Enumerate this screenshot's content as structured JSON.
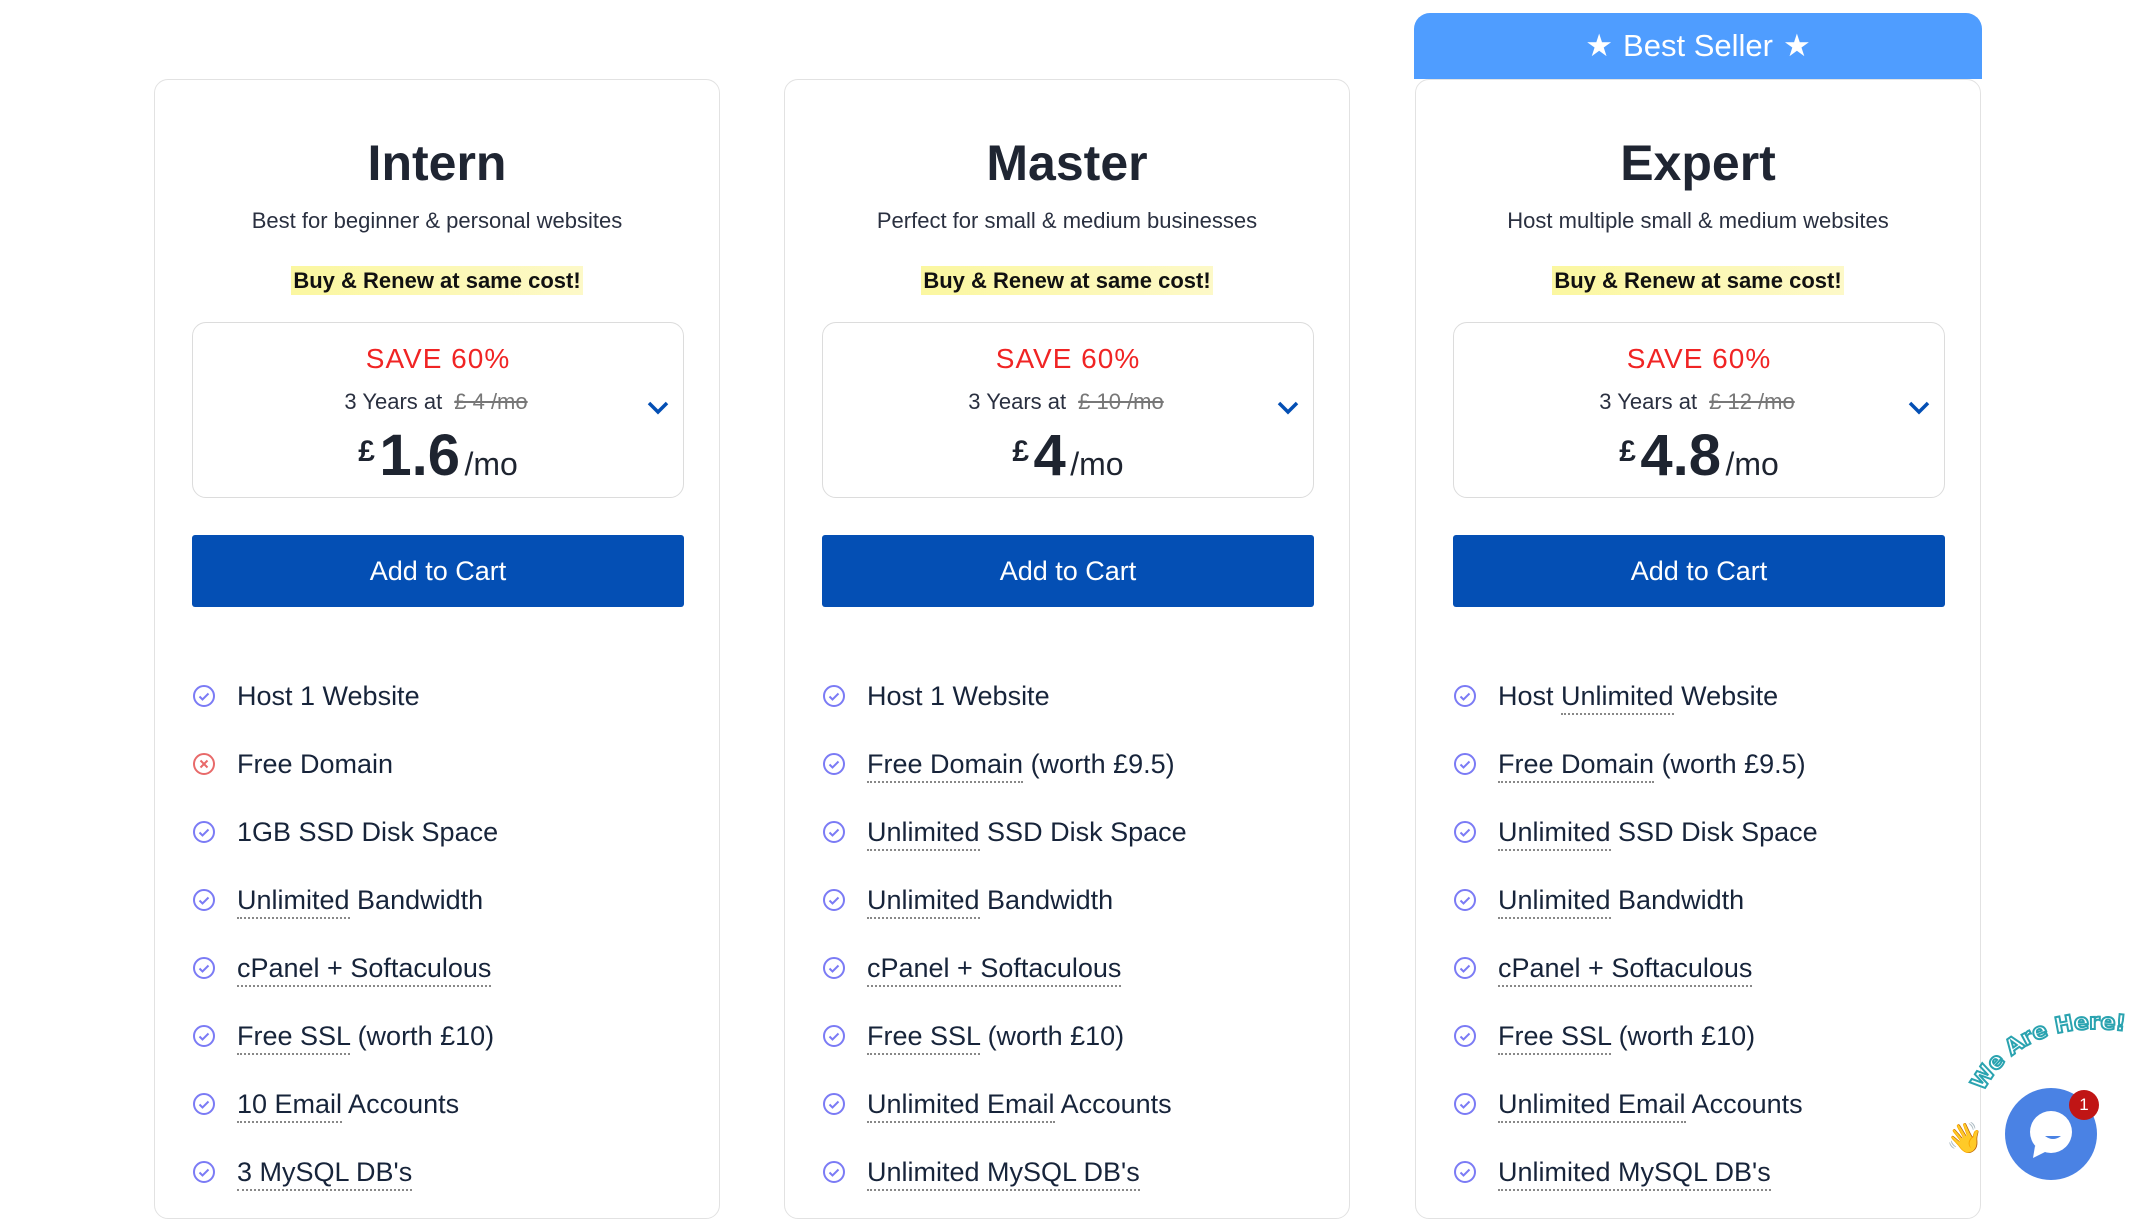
{
  "banner": {
    "label": "Best Seller",
    "star": "★"
  },
  "colors": {
    "accent_button": "#044fb4",
    "banner": "#4f9dff",
    "save": "#f02424",
    "check": "#7b7bf5",
    "cross": "#e86a6a"
  },
  "plans": [
    {
      "name": "Intern",
      "subtitle": "Best for beginner & personal websites",
      "highlight": "Buy & Renew at same cost!",
      "save": "SAVE 60%",
      "term": "3 Years at",
      "old_price": "£ 4 /mo",
      "currency": "£",
      "price": "1.6",
      "per": "/mo",
      "button": "Add to Cart",
      "features": [
        {
          "icon": "check",
          "pre": "Host 1 Website",
          "u": "",
          "post": ""
        },
        {
          "icon": "cross",
          "pre": "Free Domain",
          "u": "",
          "post": ""
        },
        {
          "icon": "check",
          "pre": "1GB SSD Disk Space",
          "u": "",
          "post": ""
        },
        {
          "icon": "check",
          "pre": "",
          "u": "Unlimited",
          "post": " Bandwidth"
        },
        {
          "icon": "check",
          "pre": "",
          "u": "cPanel + Softaculous",
          "post": ""
        },
        {
          "icon": "check",
          "pre": "",
          "u": "Free SSL",
          "post": " (worth £10)"
        },
        {
          "icon": "check",
          "pre": "",
          "u": "10 Email",
          "post": " Accounts"
        },
        {
          "icon": "check",
          "pre": "",
          "u": "3 MySQL DB's",
          "post": ""
        }
      ]
    },
    {
      "name": "Master",
      "subtitle": "Perfect for small & medium businesses",
      "highlight": "Buy & Renew at same cost!",
      "save": "SAVE 60%",
      "term": "3 Years at",
      "old_price": "£ 10 /mo",
      "currency": "£",
      "price": "4",
      "per": "/mo",
      "button": "Add to Cart",
      "features": [
        {
          "icon": "check",
          "pre": "Host 1 Website",
          "u": "",
          "post": ""
        },
        {
          "icon": "check",
          "pre": "",
          "u": "Free Domain",
          "post": " (worth £9.5)"
        },
        {
          "icon": "check",
          "pre": "",
          "u": "Unlimited",
          "post": " SSD Disk Space"
        },
        {
          "icon": "check",
          "pre": "",
          "u": "Unlimited",
          "post": " Bandwidth"
        },
        {
          "icon": "check",
          "pre": "",
          "u": "cPanel + Softaculous",
          "post": ""
        },
        {
          "icon": "check",
          "pre": "",
          "u": "Free SSL",
          "post": " (worth £10)"
        },
        {
          "icon": "check",
          "pre": "",
          "u": "Unlimited Email",
          "post": " Accounts"
        },
        {
          "icon": "check",
          "pre": "",
          "u": "Unlimited MySQL DB's",
          "post": ""
        }
      ]
    },
    {
      "name": "Expert",
      "subtitle": "Host multiple small & medium websites",
      "highlight": "Buy & Renew at same cost!",
      "save": "SAVE 60%",
      "term": "3 Years at",
      "old_price": "£ 12 /mo",
      "currency": "£",
      "price": "4.8",
      "per": "/mo",
      "button": "Add to Cart",
      "features": [
        {
          "icon": "check",
          "pre": "Host ",
          "u": "Unlimited",
          "post": " Website"
        },
        {
          "icon": "check",
          "pre": "",
          "u": "Free Domain",
          "post": " (worth £9.5)"
        },
        {
          "icon": "check",
          "pre": "",
          "u": "Unlimited",
          "post": " SSD Disk Space"
        },
        {
          "icon": "check",
          "pre": "",
          "u": "Unlimited",
          "post": " Bandwidth"
        },
        {
          "icon": "check",
          "pre": "",
          "u": "cPanel + Softaculous",
          "post": ""
        },
        {
          "icon": "check",
          "pre": "",
          "u": "Free SSL",
          "post": " (worth £10)"
        },
        {
          "icon": "check",
          "pre": "",
          "u": "Unlimited Email",
          "post": " Accounts"
        },
        {
          "icon": "check",
          "pre": "",
          "u": "Unlimited MySQL DB's",
          "post": ""
        }
      ]
    }
  ],
  "chat": {
    "badge": "1",
    "tagline": "We Are Here!"
  }
}
